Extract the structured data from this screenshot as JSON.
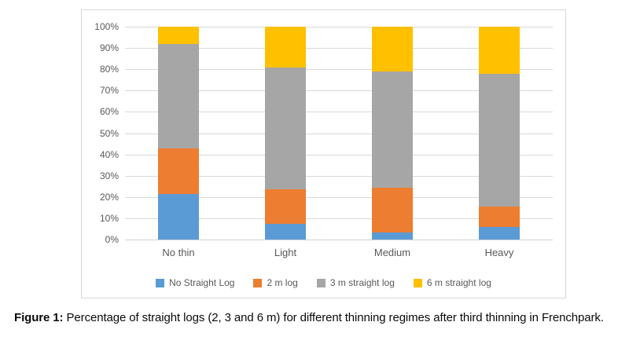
{
  "chart_data": {
    "type": "bar",
    "subtype": "stacked-100",
    "stacked": true,
    "categories": [
      "No thin",
      "Light",
      "Medium",
      "Heavy"
    ],
    "series": [
      {
        "name": "No Straight Log",
        "color": "#5b9bd5",
        "values": [
          21.5,
          7.5,
          3.5,
          6.0
        ]
      },
      {
        "name": "2 m log",
        "color": "#ed7d31",
        "values": [
          21.5,
          16.0,
          21.0,
          9.5
        ]
      },
      {
        "name": "3 m straight log",
        "color": "#a6a6a6",
        "values": [
          49.0,
          57.5,
          54.5,
          62.5
        ]
      },
      {
        "name": "6 m straight log",
        "color": "#ffc000",
        "values": [
          8.0,
          19.0,
          21.0,
          22.0
        ]
      }
    ],
    "y_ticks": [
      "100%",
      "90%",
      "80%",
      "70%",
      "60%",
      "50%",
      "40%",
      "30%",
      "20%",
      "10%",
      "0%"
    ],
    "ylim": [
      0,
      100
    ],
    "grid": true,
    "gridline_color": "#d9d9d9",
    "axis_line_color": "#d2d2d2",
    "axis_text_color": "#595959",
    "legend_position": "bottom",
    "title": "",
    "xlabel": "",
    "ylabel": ""
  },
  "caption": {
    "label": "Figure 1:",
    "text": " Percentage of straight logs (2, 3 and 6 m) for different thinning regimes after third thinning in Frenchpark."
  }
}
